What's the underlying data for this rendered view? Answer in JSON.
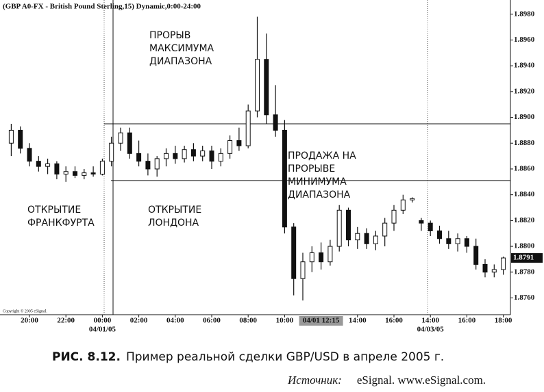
{
  "chart_data": {
    "type": "candlestick",
    "title": "(GBP A0-FX - British Pound Sterling,15) Dynamic,0:00-24:00",
    "copyright": "Copyright © 2005 eSignal.",
    "categories": [
      null,
      null,
      "20:00",
      null,
      null,
      null,
      "22:00",
      null,
      null,
      null,
      "00:00",
      null,
      null,
      null,
      "02:00",
      null,
      null,
      null,
      "04:00",
      null,
      null,
      null,
      "06:00",
      null,
      null,
      null,
      "08:00",
      null,
      null,
      null,
      "10:00",
      null,
      null,
      null,
      null,
      null,
      null,
      null,
      "14:00",
      null,
      null,
      null,
      "16:00",
      null,
      null,
      null,
      "14:00",
      null,
      null,
      null,
      "16:00",
      null,
      null,
      null,
      "18:00"
    ],
    "date_labels": [
      "04/01/05",
      "04/03/05"
    ],
    "cursor_label": "04/01 12:15",
    "open": [
      1.888,
      1.889,
      1.8876,
      1.8866,
      1.8862,
      1.8864,
      1.8856,
      1.8858,
      1.8855,
      1.8857,
      1.8856,
      1.8866,
      1.888,
      1.8888,
      1.8872,
      1.8866,
      1.886,
      1.8868,
      1.8872,
      1.8868,
      1.8875,
      1.887,
      1.8874,
      1.8866,
      1.8872,
      1.8882,
      1.8878,
      1.8905,
      1.8945,
      1.8902,
      1.889,
      1.8815,
      1.8775,
      1.8788,
      1.8795,
      1.8788,
      1.88,
      1.8828,
      1.8805,
      1.881,
      1.8802,
      1.8808,
      1.8818,
      1.8828,
      1.8836,
      1.882,
      1.8818,
      1.8812,
      1.8806,
      1.8802,
      1.8806,
      1.88,
      1.8786,
      1.878,
      1.8782
    ],
    "high": [
      1.8895,
      1.8893,
      1.888,
      1.887,
      1.8868,
      1.8866,
      1.8862,
      1.8862,
      1.886,
      1.8862,
      1.8868,
      1.8885,
      1.8892,
      1.8892,
      1.8882,
      1.8872,
      1.887,
      1.8876,
      1.8878,
      1.8878,
      1.888,
      1.8878,
      1.8878,
      1.8876,
      1.8886,
      1.8892,
      1.891,
      1.8978,
      1.8965,
      1.8925,
      1.8898,
      1.8818,
      1.8795,
      1.88,
      1.8803,
      1.8805,
      1.8832,
      1.883,
      1.8815,
      1.8814,
      1.8812,
      1.8822,
      1.8832,
      1.884,
      1.8838,
      1.8822,
      1.882,
      1.8816,
      1.8812,
      1.881,
      1.8808,
      1.8806,
      1.879,
      1.8786,
      1.8792
    ],
    "low": [
      1.887,
      1.8872,
      1.8862,
      1.8858,
      1.8856,
      1.8852,
      1.885,
      1.8853,
      1.8852,
      1.8854,
      1.8855,
      1.8862,
      1.8874,
      1.8868,
      1.8862,
      1.8855,
      1.8854,
      1.8862,
      1.8864,
      1.8865,
      1.8866,
      1.8866,
      1.886,
      1.8862,
      1.8868,
      1.8874,
      1.8876,
      1.89,
      1.8895,
      1.8885,
      1.881,
      1.8762,
      1.8758,
      1.878,
      1.8782,
      1.8785,
      1.8796,
      1.88,
      1.8798,
      1.8798,
      1.8797,
      1.88,
      1.8812,
      1.8825,
      1.8834,
      1.8812,
      1.8808,
      1.8802,
      1.8798,
      1.8796,
      1.8795,
      1.8782,
      1.8776,
      1.8776,
      1.8778
    ],
    "close": [
      1.889,
      1.8876,
      1.8866,
      1.8862,
      1.8864,
      1.8856,
      1.8858,
      1.8855,
      1.8857,
      1.8856,
      1.8866,
      1.888,
      1.8888,
      1.8872,
      1.8866,
      1.886,
      1.8868,
      1.8872,
      1.8868,
      1.8875,
      1.887,
      1.8874,
      1.8866,
      1.8872,
      1.8882,
      1.8878,
      1.8905,
      1.8945,
      1.8902,
      1.889,
      1.8815,
      1.8775,
      1.8788,
      1.8795,
      1.8788,
      1.88,
      1.8828,
      1.8805,
      1.881,
      1.8802,
      1.8808,
      1.8818,
      1.8828,
      1.8836,
      1.8837,
      1.8818,
      1.8812,
      1.8806,
      1.8802,
      1.8806,
      1.88,
      1.8786,
      1.878,
      1.8782,
      1.8791
    ],
    "up_color": "#ffffff",
    "down_color": "#111111",
    "range_high": 1.8895,
    "range_low": 1.8851,
    "last_price": 1.8791,
    "ylim": [
      1.8747,
      1.8991
    ],
    "yticks": [
      {
        "value": 1.876,
        "label": "1.8760"
      },
      {
        "value": 1.878,
        "label": "1.8780"
      },
      {
        "value": 1.88,
        "label": "1.8800"
      },
      {
        "value": 1.882,
        "label": "1.8820"
      },
      {
        "value": 1.884,
        "label": "1.8840"
      },
      {
        "value": 1.886,
        "label": "1.8860"
      },
      {
        "value": 1.888,
        "label": "1.8880"
      },
      {
        "value": 1.89,
        "label": "1.8900"
      },
      {
        "value": 1.892,
        "label": "1.8920"
      },
      {
        "value": 1.894,
        "label": "1.8940"
      },
      {
        "value": 1.896,
        "label": "1.8960"
      },
      {
        "value": 1.898,
        "label": "1.8980"
      }
    ],
    "annotations": [
      {
        "lines": [
          "ПРОРЫВ",
          "МАКСИМУМА",
          "ДИАПАЗОНА"
        ]
      },
      {
        "lines": [
          "ПРОДАЖА НА",
          "ПРОРЫВЕ",
          "МИНИМУМА",
          "ДИАПАЗОНА"
        ]
      },
      {
        "lines": [
          "ОТКРЫТИЕ",
          "ФРАНКФУРТА"
        ]
      },
      {
        "lines": [
          "ОТКРЫТИЕ",
          "ЛОНДОНА"
        ]
      }
    ]
  },
  "caption": {
    "figure": "РИС. 8.12.",
    "text": "Пример реальной сделки GBP/USD в апреле 2005 г."
  },
  "source": {
    "label": "Источник:",
    "text": "eSignal. www.eSignal.com."
  }
}
